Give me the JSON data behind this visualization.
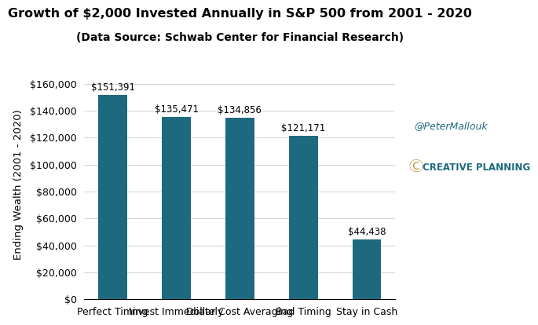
{
  "title": "Growth of $2,000 Invested Annually in S&P 500 from 2001 - 2020",
  "subtitle": "(Data Source: Schwab Center for Financial Research)",
  "categories": [
    "Perfect Timing",
    "Invest Immediately",
    "Dollar Cost Averaging",
    "Bad Timing",
    "Stay in Cash"
  ],
  "values": [
    151391,
    135471,
    134856,
    121171,
    44438
  ],
  "bar_color": "#1d6a80",
  "ylabel": "Ending Wealth (2001 - 2020)",
  "ylim": [
    0,
    170000
  ],
  "yticks": [
    0,
    20000,
    40000,
    60000,
    80000,
    100000,
    120000,
    140000,
    160000
  ],
  "bar_labels": [
    "$151,391",
    "$135,471",
    "$134,856",
    "$121,171",
    "$44,438"
  ],
  "annotation_twitter": "@PeterMallouk",
  "annotation_brand": "CREATIVE PLANNING",
  "title_fontsize": 11.5,
  "subtitle_fontsize": 10,
  "ylabel_fontsize": 9.5,
  "tick_fontsize": 9,
  "bar_label_fontsize": 8.5,
  "background_color": "#ffffff",
  "bar_width": 0.45
}
